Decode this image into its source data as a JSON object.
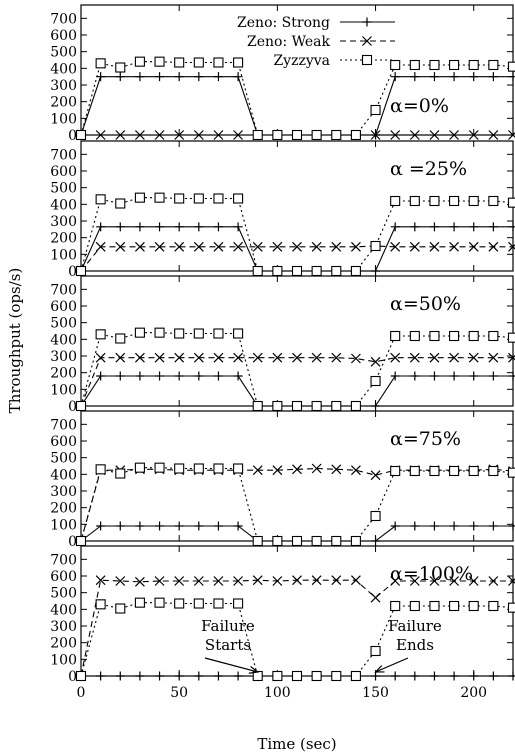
{
  "chart_data": {
    "type": "line",
    "xlabel": "Time (sec)",
    "ylabel": "Throughput (ops/s)",
    "xlim": [
      0,
      220
    ],
    "ylim": [
      0,
      780
    ],
    "xticks": [
      "0",
      "50",
      "100",
      "150",
      "200"
    ],
    "yticks": [
      "0",
      "100",
      "200",
      "300",
      "400",
      "500",
      "600",
      "700"
    ],
    "legend": {
      "placement": "top-center",
      "entries": [
        "Zeno: Strong",
        "Zeno: Weak",
        "Zyzzyva"
      ]
    },
    "series_styles": [
      {
        "name": "Zeno: Strong",
        "dash": "solid",
        "marker": "plus"
      },
      {
        "name": "Zeno: Weak",
        "dash": "dashed",
        "marker": "x"
      },
      {
        "name": "Zyzzyva",
        "dash": "dotted",
        "marker": "square"
      }
    ],
    "x": [
      0,
      10,
      20,
      30,
      40,
      50,
      60,
      70,
      80,
      90,
      100,
      110,
      120,
      130,
      140,
      150,
      160,
      170,
      180,
      190,
      200,
      210,
      220
    ],
    "panels": [
      {
        "label": "α=0%",
        "series": [
          {
            "name": "Zeno: Strong",
            "values": [
              0,
              350,
              350,
              350,
              350,
              350,
              350,
              350,
              350,
              0,
              0,
              0,
              0,
              0,
              0,
              0,
              350,
              350,
              350,
              350,
              350,
              350,
              350
            ]
          },
          {
            "name": "Zeno: Weak",
            "values": [
              0,
              0,
              0,
              0,
              0,
              0,
              0,
              0,
              0,
              0,
              0,
              0,
              0,
              0,
              0,
              0,
              0,
              0,
              0,
              0,
              0,
              0,
              0
            ]
          },
          {
            "name": "Zyzzyva",
            "values": [
              0,
              430,
              405,
              440,
              440,
              435,
              435,
              435,
              435,
              0,
              0,
              0,
              0,
              0,
              0,
              150,
              420,
              420,
              420,
              420,
              420,
              420,
              410
            ]
          }
        ]
      },
      {
        "label": "α =25%",
        "series": [
          {
            "name": "Zeno: Strong",
            "values": [
              0,
              265,
              265,
              265,
              265,
              265,
              265,
              265,
              265,
              0,
              0,
              0,
              0,
              0,
              0,
              0,
              265,
              265,
              265,
              265,
              265,
              265,
              265
            ]
          },
          {
            "name": "Zeno: Weak",
            "values": [
              0,
              145,
              145,
              145,
              145,
              145,
              145,
              145,
              145,
              145,
              145,
              145,
              145,
              145,
              145,
              150,
              145,
              145,
              145,
              145,
              145,
              145,
              145
            ]
          },
          {
            "name": "Zyzzyva",
            "values": [
              0,
              430,
              405,
              440,
              440,
              435,
              435,
              435,
              435,
              0,
              0,
              0,
              0,
              0,
              0,
              150,
              420,
              420,
              420,
              420,
              420,
              420,
              410
            ]
          }
        ]
      },
      {
        "label": "α=50%",
        "series": [
          {
            "name": "Zeno: Strong",
            "values": [
              0,
              180,
              180,
              180,
              180,
              180,
              180,
              180,
              180,
              0,
              0,
              0,
              0,
              0,
              0,
              0,
              180,
              180,
              180,
              180,
              180,
              180,
              180
            ]
          },
          {
            "name": "Zeno: Weak",
            "values": [
              0,
              290,
              290,
              290,
              290,
              290,
              290,
              290,
              290,
              290,
              290,
              290,
              290,
              290,
              285,
              265,
              290,
              290,
              290,
              290,
              290,
              290,
              290
            ]
          },
          {
            "name": "Zyzzyva",
            "values": [
              0,
              430,
              405,
              440,
              440,
              435,
              435,
              435,
              435,
              0,
              0,
              0,
              0,
              0,
              0,
              150,
              420,
              420,
              420,
              420,
              420,
              420,
              410
            ]
          }
        ]
      },
      {
        "label": "α=75%",
        "series": [
          {
            "name": "Zeno: Strong",
            "values": [
              0,
              90,
              90,
              90,
              90,
              90,
              90,
              90,
              90,
              0,
              0,
              0,
              0,
              0,
              0,
              0,
              90,
              90,
              90,
              90,
              90,
              90,
              90
            ]
          },
          {
            "name": "Zeno: Weak",
            "values": [
              0,
              425,
              425,
              430,
              430,
              425,
              425,
              425,
              425,
              425,
              425,
              430,
              435,
              430,
              425,
              395,
              425,
              425,
              425,
              425,
              425,
              430,
              420
            ]
          },
          {
            "name": "Zyzzyva",
            "values": [
              0,
              430,
              405,
              440,
              440,
              435,
              435,
              435,
              435,
              0,
              0,
              0,
              0,
              0,
              0,
              150,
              420,
              420,
              420,
              420,
              420,
              420,
              410
            ]
          }
        ]
      },
      {
        "label": "α=100%",
        "series": [
          {
            "name": "Zeno: Strong",
            "values": [
              0,
              0,
              0,
              0,
              0,
              0,
              0,
              0,
              0,
              0,
              0,
              0,
              0,
              0,
              0,
              0,
              0,
              0,
              0,
              0,
              0,
              0,
              0
            ]
          },
          {
            "name": "Zeno: Weak",
            "values": [
              0,
              575,
              570,
              565,
              570,
              570,
              570,
              570,
              570,
              575,
              570,
              575,
              575,
              575,
              575,
              470,
              570,
              570,
              570,
              570,
              570,
              570,
              570
            ]
          },
          {
            "name": "Zyzzyva",
            "values": [
              0,
              430,
              405,
              440,
              440,
              435,
              435,
              435,
              435,
              0,
              0,
              0,
              0,
              0,
              0,
              150,
              420,
              420,
              420,
              420,
              420,
              420,
              410
            ]
          }
        ],
        "annotations": [
          {
            "text": [
              "Failure",
              "Starts"
            ],
            "x": 90,
            "y": 0
          },
          {
            "text": [
              "Failure",
              "Ends"
            ],
            "x": 150,
            "y": 0
          }
        ]
      }
    ]
  }
}
